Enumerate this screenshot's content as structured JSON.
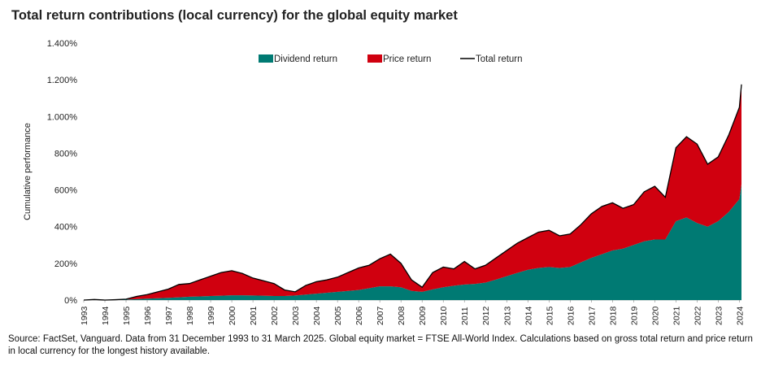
{
  "chart_data": {
    "type": "area",
    "stacked": true,
    "title": "Total return contributions (local currency) for the global equity market",
    "ylabel": "Cumulative performance",
    "source": "Source: FactSet, Vanguard. Data from 31 December 1993 to 31 March 2025. Global equity market = FTSE All-World Index. Calculations based on gross total return and price return in local currency for the longest history available.",
    "x": [
      1993,
      1993.5,
      1994,
      1994.5,
      1995,
      1995.5,
      1996,
      1996.5,
      1997,
      1997.5,
      1998,
      1998.5,
      1999,
      1999.5,
      2000,
      2000.5,
      2001,
      2001.5,
      2002,
      2002.5,
      2003,
      2003.5,
      2004,
      2004.5,
      2005,
      2005.5,
      2006,
      2006.5,
      2007,
      2007.5,
      2008,
      2008.5,
      2009,
      2009.5,
      2010,
      2010.5,
      2011,
      2011.5,
      2012,
      2012.5,
      2013,
      2013.5,
      2014,
      2014.5,
      2015,
      2015.5,
      2016,
      2016.5,
      2017,
      2017.5,
      2018,
      2018.5,
      2019,
      2019.5,
      2020,
      2020.5,
      2021,
      2021.5,
      2022,
      2022.5,
      2023,
      2023.5,
      2024,
      2024.1
    ],
    "xlim": [
      1993,
      2024.1
    ],
    "xticks": [
      1993,
      1994,
      1995,
      1996,
      1997,
      1998,
      1999,
      2000,
      2001,
      2002,
      2003,
      2004,
      2005,
      2006,
      2007,
      2008,
      2009,
      2010,
      2011,
      2012,
      2013,
      2014,
      2015,
      2016,
      2017,
      2018,
      2019,
      2020,
      2021,
      2022,
      2023,
      2024
    ],
    "ylim": [
      0,
      1400
    ],
    "yticks": [
      {
        "value": 0,
        "label": "0%"
      },
      {
        "value": 200,
        "label": "200%"
      },
      {
        "value": 400,
        "label": "400%"
      },
      {
        "value": 600,
        "label": "600%"
      },
      {
        "value": 800,
        "label": "800%"
      },
      {
        "value": 1000,
        "label": "1.000%"
      },
      {
        "value": 1200,
        "label": "1.200%"
      },
      {
        "value": 1400,
        "label": "1.400%"
      }
    ],
    "grid": false,
    "legend": "top",
    "series": [
      {
        "name": "Dividend return",
        "color": "#007a73",
        "kind": "area",
        "values": [
          0,
          0,
          0,
          1,
          3,
          5,
          8,
          10,
          12,
          15,
          18,
          20,
          22,
          24,
          26,
          26,
          25,
          24,
          22,
          22,
          25,
          30,
          35,
          40,
          45,
          50,
          55,
          65,
          75,
          75,
          70,
          50,
          45,
          58,
          70,
          78,
          85,
          88,
          95,
          112,
          130,
          148,
          165,
          175,
          180,
          175,
          180,
          205,
          230,
          250,
          270,
          280,
          300,
          320,
          330,
          330,
          430,
          450,
          420,
          400,
          430,
          480,
          550,
          630
        ]
      },
      {
        "name": "Price return",
        "color": "#d0000f",
        "kind": "area",
        "values": [
          0,
          3,
          0,
          1,
          2,
          15,
          22,
          35,
          48,
          70,
          72,
          90,
          108,
          126,
          134,
          119,
          95,
          81,
          68,
          33,
          20,
          50,
          65,
          70,
          80,
          100,
          120,
          125,
          150,
          175,
          130,
          60,
          25,
          92,
          110,
          92,
          125,
          82,
          95,
          118,
          140,
          162,
          175,
          195,
          200,
          175,
          180,
          205,
          240,
          260,
          260,
          220,
          220,
          270,
          290,
          230,
          400,
          440,
          430,
          340,
          350,
          420,
          500,
          545
        ]
      },
      {
        "name": "Total return",
        "color": "#000000",
        "kind": "line",
        "values": [
          0,
          3,
          0,
          2,
          5,
          20,
          30,
          45,
          60,
          85,
          90,
          110,
          130,
          150,
          160,
          145,
          120,
          105,
          90,
          55,
          45,
          80,
          100,
          110,
          125,
          150,
          175,
          190,
          225,
          250,
          200,
          110,
          70,
          150,
          180,
          170,
          210,
          170,
          190,
          230,
          270,
          310,
          340,
          370,
          380,
          350,
          360,
          410,
          470,
          510,
          530,
          500,
          520,
          590,
          620,
          560,
          830,
          890,
          850,
          740,
          780,
          900,
          1050,
          1175
        ]
      }
    ]
  }
}
